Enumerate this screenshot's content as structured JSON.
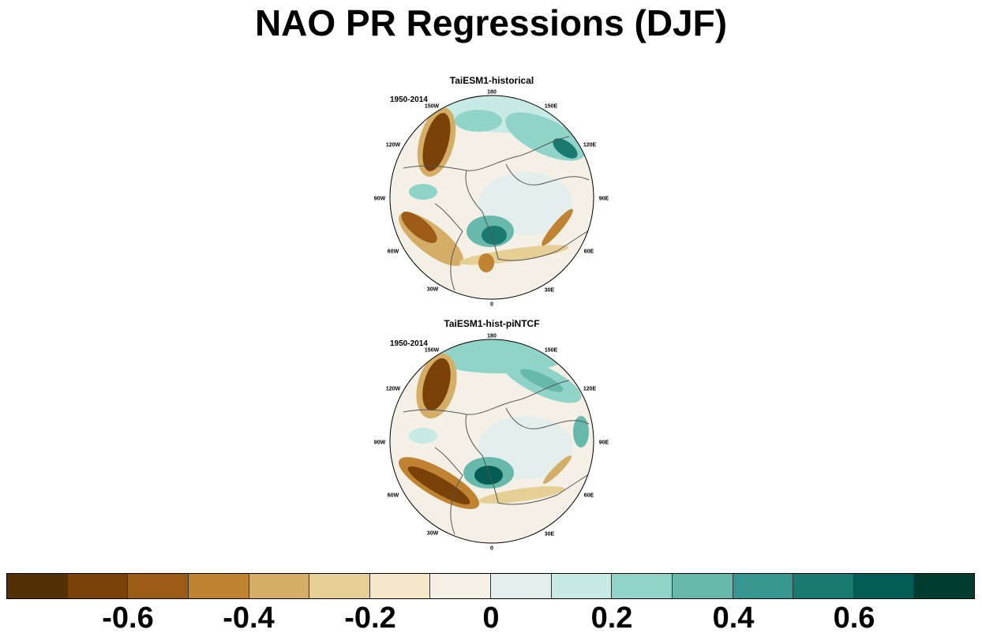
{
  "title": "NAO PR Regressions (DJF)",
  "panels": [
    {
      "name": "TaiESM1-historical",
      "period": "1950-2014",
      "lon_labels": {
        "top": "180",
        "ne": "150E",
        "ene": "120E",
        "e": "90E",
        "ese": "60E",
        "se": "30E",
        "bottom": "0",
        "sw": "30W",
        "wsw": "60W",
        "w": "90W",
        "wnw": "120W",
        "nw": "150W"
      }
    },
    {
      "name": "TaiESM1-hist-piNTCF",
      "period": "1950-2014",
      "lon_labels": {
        "top": "180",
        "ne": "150E",
        "ene": "120E",
        "e": "90E",
        "ese": "60E",
        "se": "30E",
        "bottom": "0",
        "sw": "30W",
        "wsw": "60W",
        "w": "90W",
        "wnw": "120W",
        "nw": "150W"
      }
    }
  ],
  "colorbar": {
    "colors": [
      "#543005",
      "#7a4108",
      "#9c5c16",
      "#c08332",
      "#d4ae66",
      "#e6cf95",
      "#f4e8c8",
      "#f4f0e6",
      "#e4efed",
      "#c7eae5",
      "#90d3c9",
      "#67b9ac",
      "#35978f",
      "#197b70",
      "#045d54",
      "#003c30"
    ],
    "labels": [
      "-0.6",
      "-0.4",
      "-0.2",
      "0",
      "0.2",
      "0.4",
      "0.6"
    ]
  }
}
